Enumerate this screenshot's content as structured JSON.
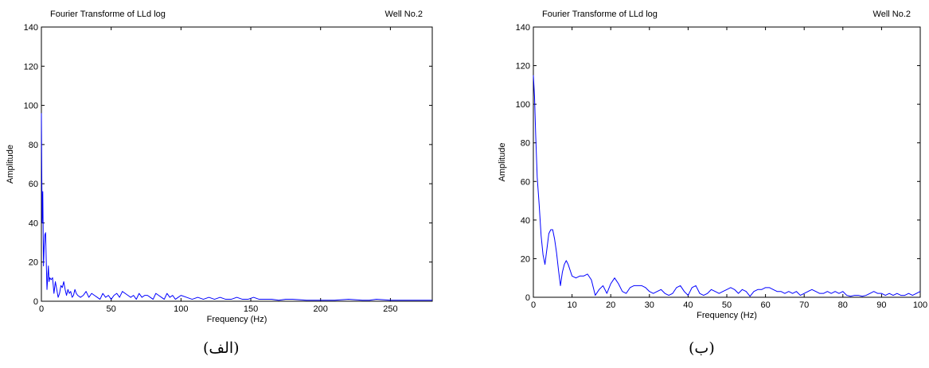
{
  "chart_data": [
    {
      "type": "line",
      "title": "Fourier Transforme of LLd log",
      "subtitle": "Well No.2",
      "xlabel": "Frequency (Hz)",
      "ylabel": "Amplitude",
      "xlim": [
        0,
        280
      ],
      "ylim": [
        0,
        140
      ],
      "xticks": [
        0,
        50,
        100,
        150,
        200,
        250
      ],
      "yticks": [
        0,
        20,
        40,
        60,
        80,
        100,
        120,
        140
      ],
      "grid": false,
      "line_color": "#0000ff",
      "caption": "(الف)",
      "series": [
        {
          "x": [
            0,
            0.5,
            1,
            1.5,
            2,
            2.5,
            3,
            3.5,
            4,
            4.5,
            5,
            5.5,
            6,
            7,
            8,
            9,
            10,
            11,
            12,
            13,
            14,
            15,
            16,
            17,
            18,
            19,
            20,
            21,
            22,
            23,
            24,
            25,
            26,
            28,
            30,
            32,
            34,
            36,
            38,
            40,
            42,
            44,
            46,
            48,
            50,
            52,
            54,
            56,
            58,
            60,
            62,
            64,
            66,
            68,
            70,
            72,
            74,
            76,
            78,
            80,
            82,
            84,
            86,
            88,
            90,
            92,
            94,
            96,
            98,
            100,
            104,
            108,
            112,
            116,
            120,
            124,
            128,
            132,
            136,
            140,
            144,
            148,
            152,
            156,
            160,
            165,
            170,
            175,
            180,
            190,
            200,
            210,
            220,
            230,
            235,
            240,
            250,
            260,
            270,
            280
          ],
          "y": [
            96,
            40,
            56,
            18,
            28,
            34,
            35,
            20,
            6,
            12,
            18,
            10,
            12,
            11,
            12,
            4,
            10,
            6,
            2,
            4,
            8,
            7,
            10,
            6,
            3,
            6,
            4,
            5,
            2,
            3,
            6,
            4,
            3,
            2,
            3,
            5,
            2,
            4,
            3,
            2,
            1,
            4,
            2,
            3,
            1,
            3,
            4,
            2,
            5,
            4,
            3,
            2,
            3,
            1,
            4,
            2,
            3,
            3,
            2,
            1,
            4,
            3,
            2,
            1,
            4,
            2,
            3,
            1,
            2,
            3,
            2,
            1,
            2,
            1,
            2,
            1,
            2,
            1,
            1,
            2,
            1,
            1,
            2,
            1,
            1,
            1,
            0.5,
            1,
            1,
            0.5,
            0.5,
            0.5,
            1,
            0.5,
            0.5,
            1,
            0.5,
            0.5,
            0.5,
            0.5
          ]
        }
      ]
    },
    {
      "type": "line",
      "title": "Fourier Transforme of LLd log",
      "subtitle": "Well No.2",
      "xlabel": "Frequency (Hz)",
      "ylabel": "Amplitude",
      "xlim": [
        0,
        100
      ],
      "ylim": [
        0,
        140
      ],
      "xticks": [
        0,
        10,
        20,
        30,
        40,
        50,
        60,
        70,
        80,
        90,
        100
      ],
      "yticks": [
        0,
        20,
        40,
        60,
        80,
        100,
        120,
        140
      ],
      "grid": false,
      "line_color": "#0000ff",
      "caption": "(ب)",
      "series": [
        {
          "x": [
            0,
            0.3,
            0.6,
            1,
            1.5,
            2,
            2.5,
            3,
            3.5,
            4,
            4.5,
            5,
            5.5,
            6,
            6.5,
            7,
            7.5,
            8,
            8.5,
            9,
            9.5,
            10,
            11,
            12,
            13,
            14,
            15,
            16,
            17,
            18,
            19,
            20,
            21,
            22,
            23,
            24,
            25,
            26,
            27,
            28,
            29,
            30,
            31,
            32,
            33,
            34,
            35,
            36,
            37,
            38,
            39,
            40,
            41,
            42,
            43,
            44,
            45,
            46,
            47,
            48,
            49,
            50,
            51,
            52,
            53,
            54,
            55,
            56,
            57,
            58,
            59,
            60,
            61,
            62,
            63,
            64,
            65,
            66,
            67,
            68,
            69,
            70,
            71,
            72,
            73,
            74,
            75,
            76,
            77,
            78,
            79,
            80,
            81,
            82,
            83,
            84,
            85,
            86,
            87,
            88,
            89,
            90,
            91,
            92,
            93,
            94,
            95,
            96,
            97,
            98,
            99,
            100
          ],
          "y": [
            115,
            104,
            84,
            62,
            48,
            32,
            22,
            17,
            25,
            33,
            35,
            35,
            30,
            23,
            14,
            6,
            13,
            17,
            19,
            17,
            14,
            11,
            10,
            11,
            11,
            12,
            9,
            1,
            4,
            6,
            2,
            7,
            10,
            7,
            3,
            2,
            5,
            6,
            6,
            6,
            5,
            3,
            2,
            3,
            4,
            2,
            1,
            2,
            5,
            6,
            3,
            1,
            5,
            6,
            2,
            1,
            2,
            4,
            3,
            2,
            3,
            4,
            5,
            4,
            2,
            4,
            3,
            0.5,
            3,
            4,
            4,
            5,
            5,
            4,
            3,
            3,
            2,
            3,
            2,
            3,
            1,
            2,
            3,
            4,
            3,
            2,
            2,
            3,
            2,
            3,
            2,
            3,
            1,
            0.5,
            1,
            1,
            0.5,
            1,
            2,
            3,
            2,
            2,
            1,
            2,
            1,
            2,
            1,
            1,
            2,
            1,
            2,
            3
          ]
        }
      ]
    }
  ]
}
